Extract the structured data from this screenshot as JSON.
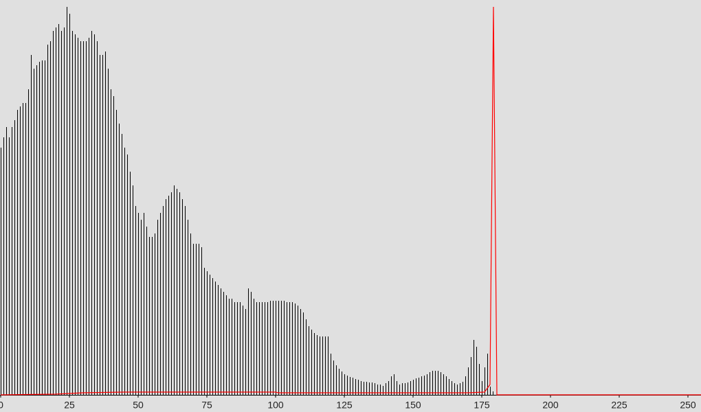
{
  "chart_data": {
    "type": "histogram",
    "x": [
      0,
      1,
      2,
      3,
      4,
      5,
      6,
      7,
      8,
      9,
      10,
      11,
      12,
      13,
      14,
      15,
      16,
      17,
      18,
      19,
      20,
      21,
      22,
      23,
      24,
      25,
      26,
      27,
      28,
      29,
      30,
      31,
      32,
      33,
      34,
      35,
      36,
      37,
      38,
      39,
      40,
      41,
      42,
      43,
      44,
      45,
      46,
      47,
      48,
      49,
      50,
      51,
      52,
      53,
      54,
      55,
      56,
      57,
      58,
      59,
      60,
      61,
      62,
      63,
      64,
      65,
      66,
      67,
      68,
      69,
      70,
      71,
      72,
      73,
      74,
      75,
      76,
      77,
      78,
      79,
      80,
      81,
      82,
      83,
      84,
      85,
      86,
      87,
      88,
      89,
      90,
      91,
      92,
      93,
      94,
      95,
      96,
      97,
      98,
      99,
      100,
      101,
      102,
      103,
      104,
      105,
      106,
      107,
      108,
      109,
      110,
      111,
      112,
      113,
      114,
      115,
      116,
      117,
      118,
      119,
      120,
      121,
      122,
      123,
      124,
      125,
      126,
      127,
      128,
      129,
      130,
      131,
      132,
      133,
      134,
      135,
      136,
      137,
      138,
      139,
      140,
      141,
      142,
      143,
      144,
      145,
      146,
      147,
      148,
      149,
      150,
      151,
      152,
      153,
      154,
      155,
      156,
      157,
      158,
      159,
      160,
      161,
      162,
      163,
      164,
      165,
      166,
      167,
      168,
      169,
      170,
      171,
      172,
      173,
      174,
      175,
      176,
      177,
      178,
      179
    ],
    "values": [
      360,
      375,
      390,
      375,
      390,
      400,
      415,
      420,
      425,
      425,
      445,
      495,
      475,
      480,
      485,
      487,
      487,
      510,
      515,
      530,
      535,
      540,
      530,
      535,
      565,
      555,
      530,
      525,
      520,
      515,
      515,
      515,
      520,
      530,
      525,
      515,
      495,
      495,
      500,
      475,
      445,
      435,
      415,
      395,
      380,
      360,
      350,
      325,
      305,
      275,
      265,
      255,
      265,
      245,
      230,
      230,
      235,
      255,
      265,
      275,
      285,
      290,
      295,
      305,
      300,
      295,
      285,
      275,
      255,
      235,
      220,
      220,
      220,
      215,
      185,
      180,
      175,
      170,
      165,
      160,
      155,
      150,
      145,
      140,
      140,
      135,
      135,
      135,
      130,
      125,
      155,
      150,
      140,
      135,
      135,
      135,
      135,
      135,
      137,
      137,
      137,
      137,
      137,
      137,
      135,
      135,
      135,
      133,
      130,
      125,
      120,
      110,
      100,
      95,
      90,
      87,
      85,
      85,
      85,
      85,
      60,
      50,
      43,
      38,
      34,
      30,
      28,
      26,
      25,
      23,
      22,
      20,
      19,
      19,
      18,
      18,
      17,
      15,
      15,
      13,
      17,
      20,
      27,
      30,
      20,
      15,
      17,
      17,
      18,
      20,
      22,
      24,
      25,
      27,
      28,
      30,
      33,
      35,
      35,
      35,
      33,
      30,
      27,
      23,
      20,
      17,
      15,
      17,
      19,
      27,
      40,
      55,
      80,
      70,
      45,
      20,
      40,
      60,
      12,
      5
    ],
    "color": "#000000",
    "line": {
      "color": "#ff0000",
      "x": [
        0,
        20,
        30,
        45,
        100,
        101,
        170,
        176,
        178,
        179.25,
        180.5,
        255
      ],
      "values": [
        0,
        1,
        3,
        4,
        4,
        3,
        3,
        4,
        15,
        565,
        0,
        0
      ]
    },
    "xlim": [
      0,
      255
    ],
    "ylim": [
      0,
      565
    ],
    "xticks": [
      0,
      25,
      50,
      75,
      100,
      125,
      150,
      175,
      200,
      225,
      250
    ]
  }
}
